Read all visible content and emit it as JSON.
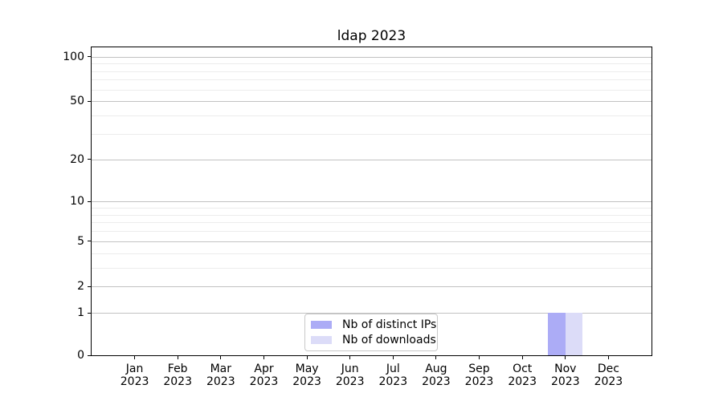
{
  "chart_data": {
    "type": "bar",
    "title": "ldap 2023",
    "categories": [
      "Jan",
      "Feb",
      "Mar",
      "Apr",
      "May",
      "Jun",
      "Jul",
      "Aug",
      "Sep",
      "Oct",
      "Nov",
      "Dec"
    ],
    "category_year": "2023",
    "series": [
      {
        "name": "Nb of distinct IPs",
        "color": "#acacf6",
        "values": [
          0,
          0,
          0,
          0,
          0,
          0,
          0,
          0,
          0,
          0,
          1,
          0
        ]
      },
      {
        "name": "Nb of downloads",
        "color": "#dcdcf8",
        "values": [
          0,
          0,
          0,
          0,
          0,
          0,
          0,
          0,
          0,
          0,
          1,
          0
        ]
      }
    ],
    "xlabel": "",
    "ylabel": "",
    "y_axis": {
      "scale": "log1p",
      "ylim": [
        0,
        115
      ],
      "major_ticks": [
        0,
        1,
        2,
        5,
        10,
        20,
        50,
        100
      ],
      "minor_ticks": [
        3,
        4,
        6,
        7,
        8,
        9,
        30,
        40,
        60,
        70,
        80,
        90
      ]
    },
    "grid": {
      "major_color": "#c2c2c2",
      "minor_color": "#ececec"
    },
    "legend": {
      "position": "lower center",
      "border_color": "#c8c8c8"
    }
  }
}
